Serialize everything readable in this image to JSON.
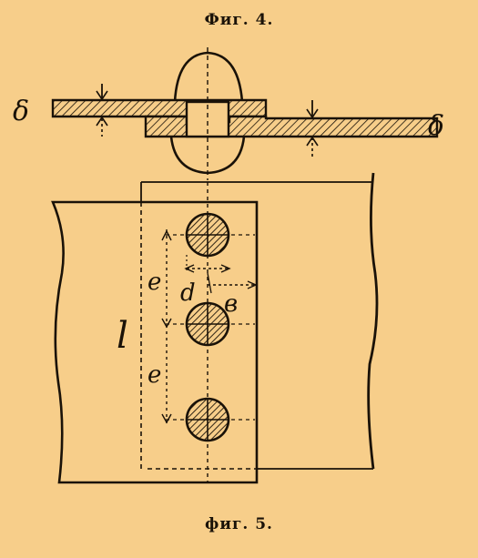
{
  "captions": {
    "fig4": "Фиг. 4.",
    "fig5": "фиг. 5."
  },
  "labels": {
    "thickness_left": "δ",
    "thickness_right": "δ",
    "length": "l",
    "pitch_upper": "e",
    "pitch_lower": "e",
    "diameter": "d",
    "edge": "в"
  },
  "colors": {
    "paper": "#f7ce8a",
    "ink": "#1a1208"
  }
}
